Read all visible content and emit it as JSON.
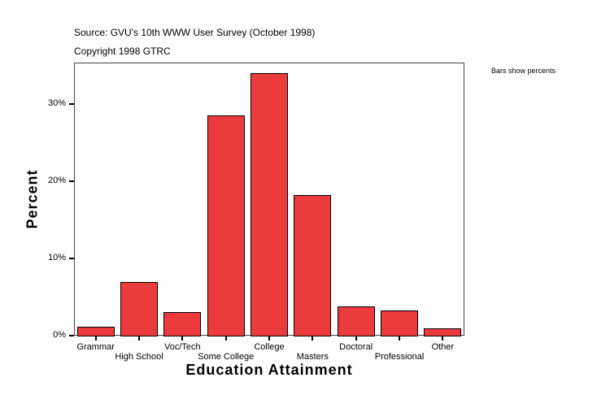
{
  "header": {
    "source": "Source: GVU's 10th WWW User Survey (October 1998)",
    "copyright": "Copyright 1998 GTRC",
    "note": "Bars show percents"
  },
  "chart_data": {
    "type": "bar",
    "title": "Source: GVU's 10th WWW User Survey (October 1998)",
    "subtitle": "Copyright 1998 GTRC",
    "annotation": "Bars show percents",
    "xlabel": "Education Attainment",
    "ylabel": "Percent",
    "categories": [
      "Grammar",
      "High School",
      "Voc/Tech",
      "Some College",
      "College",
      "Masters",
      "Doctoral",
      "Professional",
      "Other"
    ],
    "values": [
      1.2,
      6.9,
      3.1,
      28.5,
      34.0,
      18.2,
      3.8,
      3.3,
      0.9
    ],
    "yticks": [
      "0%",
      "10%",
      "20%",
      "30%"
    ],
    "ylim": [
      0,
      35.4
    ],
    "grid": false,
    "bar_color": "#ec3b3d"
  }
}
